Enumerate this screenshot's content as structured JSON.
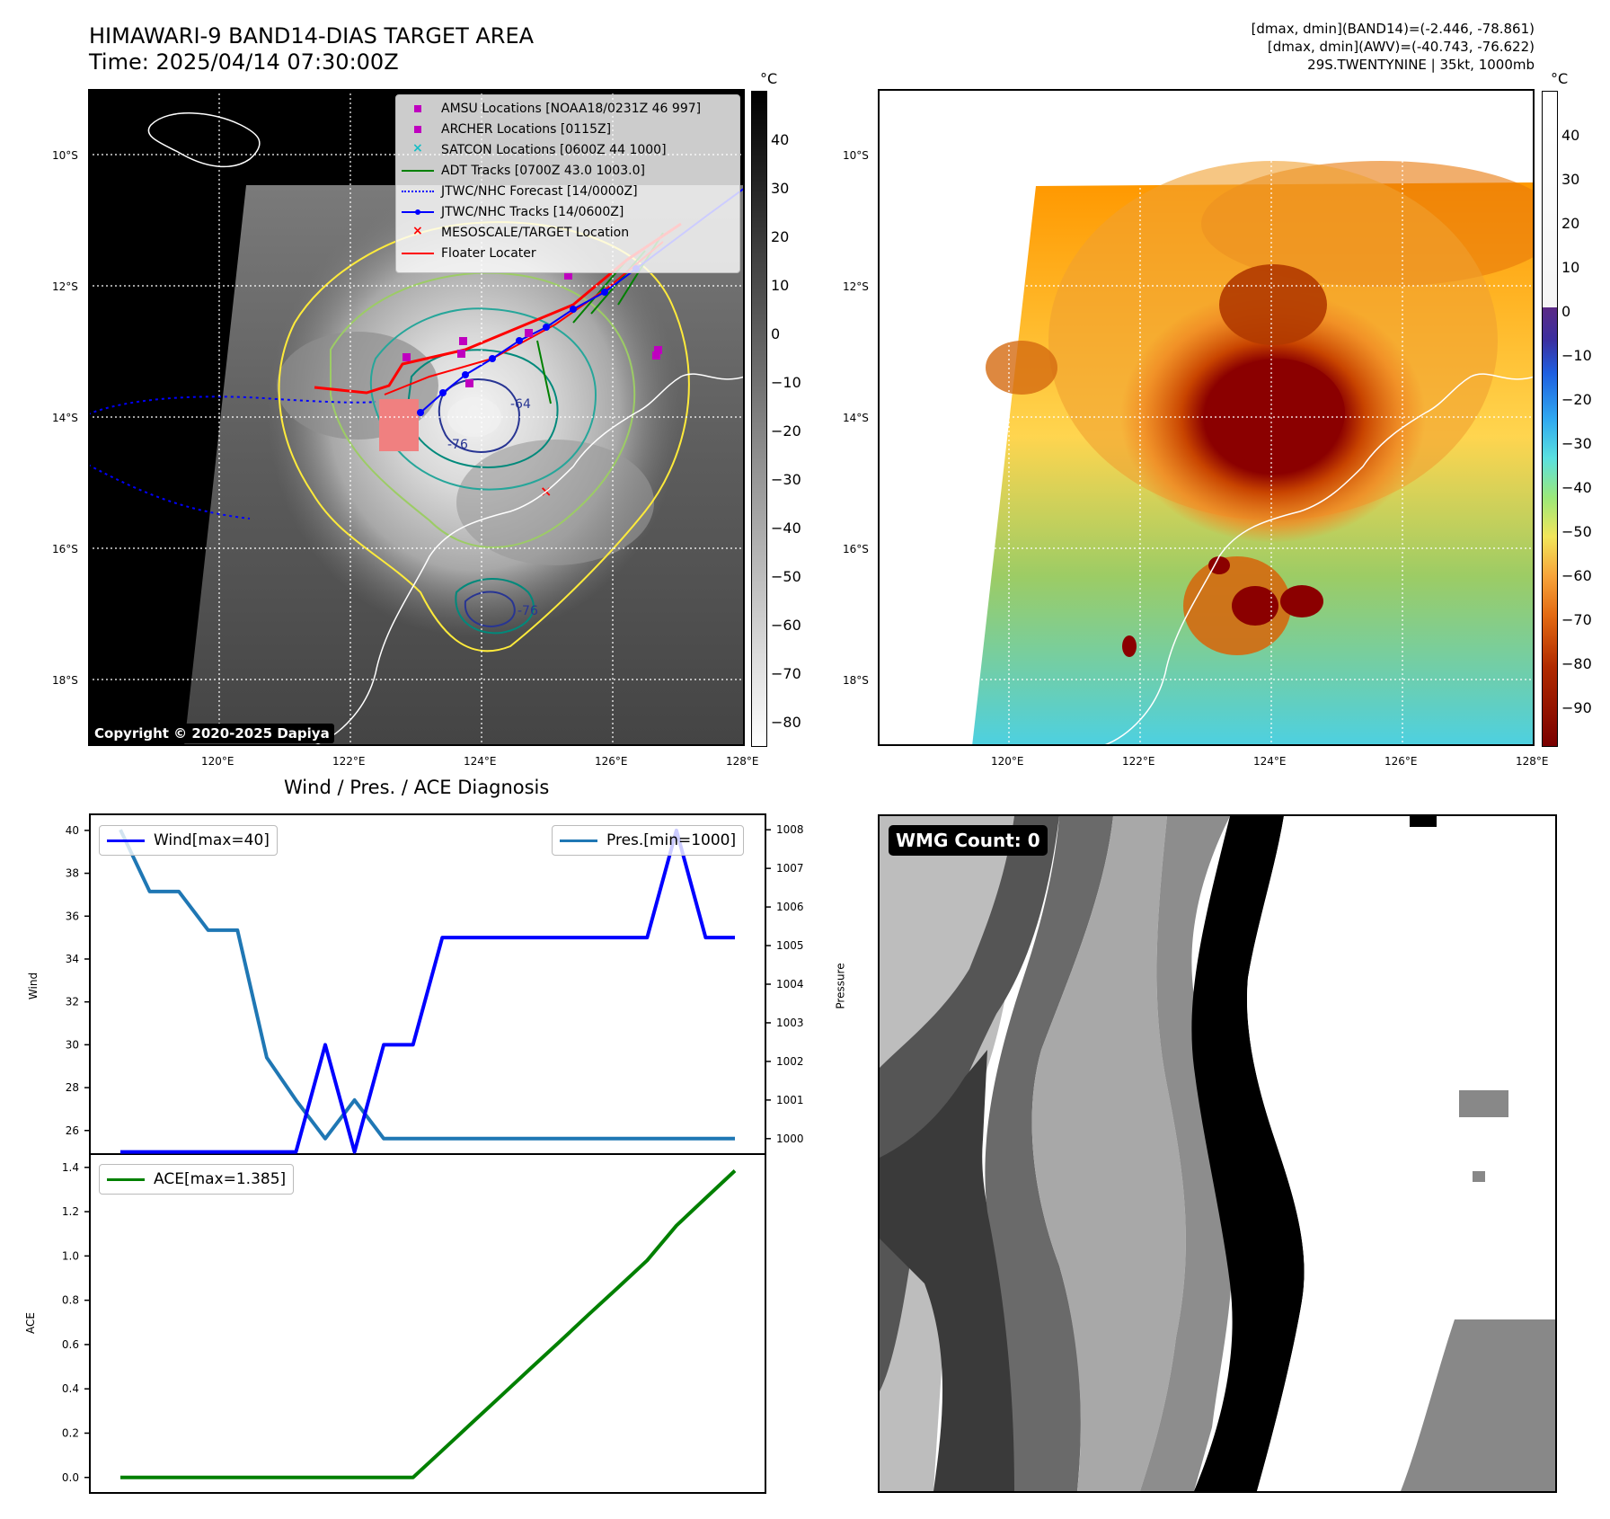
{
  "header": {
    "title_line1": "HIMAWARI-9 BAND14-DIAS TARGET AREA",
    "title_line2": "Time: 2025/04/14 07:30:00Z",
    "info_line1": "[dmax, dmin](BAND14)=(-2.446, -78.861)",
    "info_line2": "[dmax, dmin](AWV)=(-40.743, -76.622)",
    "info_line3": "29S.TWENTYNINE | 35kt, 1000mb"
  },
  "map_panel": {
    "lat_labels": [
      "10°S",
      "12°S",
      "14°S",
      "16°S",
      "18°S"
    ],
    "lon_labels": [
      "120°E",
      "122°E",
      "124°E",
      "126°E",
      "128°E"
    ],
    "copyright": "Copyright © 2020-2025 Dapiya",
    "colorbar_unit": "°C",
    "colorbar_ticks": [
      "40",
      "30",
      "20",
      "10",
      "0",
      "−10",
      "−20",
      "−30",
      "−40",
      "−50",
      "−60",
      "−70",
      "−80"
    ],
    "contour_labels": [
      "-76",
      "-64",
      "-76"
    ],
    "legend": [
      {
        "label": "AMSU Locations [NOAA18/0231Z 46 997]",
        "symbol": "square",
        "color": "#bf00bf"
      },
      {
        "label": "ARCHER Locations [0115Z]",
        "symbol": "square",
        "color": "#bf00bf"
      },
      {
        "label": "SATCON Locations [0600Z 44 1000]",
        "symbol": "x",
        "color": "#17bec6"
      },
      {
        "label": "ADT Tracks [0700Z 43.0 1003.0]",
        "symbol": "line",
        "color": "#008000"
      },
      {
        "label": "JTWC/NHC Forecast [14/0000Z]",
        "symbol": "dotted",
        "color": "#0000ff"
      },
      {
        "label": "JTWC/NHC Tracks [14/0600Z]",
        "symbol": "line-dot",
        "color": "#0000ff"
      },
      {
        "label": "MESOSCALE/TARGET Location",
        "symbol": "x",
        "color": "#ff0000"
      },
      {
        "label": "Floater Locater",
        "symbol": "line",
        "color": "#ff0000"
      }
    ]
  },
  "awv_panel": {
    "lat_labels": [
      "10°S",
      "12°S",
      "14°S",
      "16°S",
      "18°S"
    ],
    "lon_labels": [
      "120°E",
      "122°E",
      "124°E",
      "126°E",
      "128°E"
    ],
    "colorbar_unit": "°C",
    "colorbar_ticks": [
      "40",
      "30",
      "20",
      "10",
      "0",
      "−10",
      "−20",
      "−30",
      "−40",
      "−50",
      "−60",
      "−70",
      "−80",
      "−90"
    ]
  },
  "diagnosis": {
    "title": "Wind / Pres. / ACE Diagnosis",
    "wind_ylabel": "Wind",
    "pres_ylabel": "Pressure",
    "ace_ylabel": "ACE",
    "wind_legend": "Wind[max=40]",
    "pres_legend": "Pres.[min=1000]",
    "ace_legend": "ACE[max=1.385]"
  },
  "wmg_panel": {
    "badge": "WMG Count: 0"
  },
  "colors": {
    "wind": "#0000ff",
    "pressure": "#1f77b4",
    "ace": "#008000"
  },
  "chart_data": [
    {
      "type": "line",
      "title": "Wind / Pres. / ACE Diagnosis",
      "x": [
        0,
        1,
        2,
        3,
        4,
        5,
        6,
        7,
        8,
        9,
        10,
        11,
        12,
        13,
        14,
        15,
        16,
        17,
        18,
        19,
        20,
        21
      ],
      "series": [
        {
          "name": "Wind[max=40]",
          "axis": "left",
          "values": [
            25,
            25,
            25,
            25,
            25,
            25,
            25,
            30,
            25,
            30,
            30,
            35,
            35,
            35,
            35,
            35,
            35,
            35,
            35,
            40,
            35,
            35
          ]
        },
        {
          "name": "Pres.[min=1000]",
          "axis": "right",
          "values": [
            1008,
            1006.4,
            1006.4,
            1005.4,
            1005.4,
            1002.1,
            1001,
            1000,
            1001,
            1000,
            1000,
            1000,
            1000,
            1000,
            1000,
            1000,
            1000,
            1000,
            1000,
            1000,
            1000,
            1000
          ]
        }
      ],
      "ylabel": "Wind",
      "y2label": "Pressure",
      "ylim": [
        24.9,
        40.75
      ],
      "y2lim": [
        999.6,
        1008.4
      ],
      "yticks": [
        26,
        28,
        30,
        32,
        34,
        36,
        38,
        40
      ],
      "y2ticks": [
        1000,
        1001,
        1002,
        1003,
        1004,
        1005,
        1006,
        1007,
        1008
      ]
    },
    {
      "type": "line",
      "x": [
        0,
        1,
        2,
        3,
        4,
        5,
        6,
        7,
        8,
        9,
        10,
        11,
        12,
        13,
        14,
        15,
        16,
        17,
        18,
        19,
        20,
        21
      ],
      "series": [
        {
          "name": "ACE[max=1.385]",
          "values": [
            0,
            0,
            0,
            0,
            0,
            0,
            0,
            0,
            0,
            0,
            0,
            0.122,
            0.245,
            0.367,
            0.49,
            0.612,
            0.735,
            0.857,
            0.98,
            1.137,
            1.261,
            1.385
          ]
        }
      ],
      "ylabel": "ACE",
      "ylim": [
        -0.07,
        1.46
      ],
      "yticks": [
        0.0,
        0.2,
        0.4,
        0.6,
        0.8,
        1.0,
        1.2,
        1.4
      ]
    }
  ]
}
